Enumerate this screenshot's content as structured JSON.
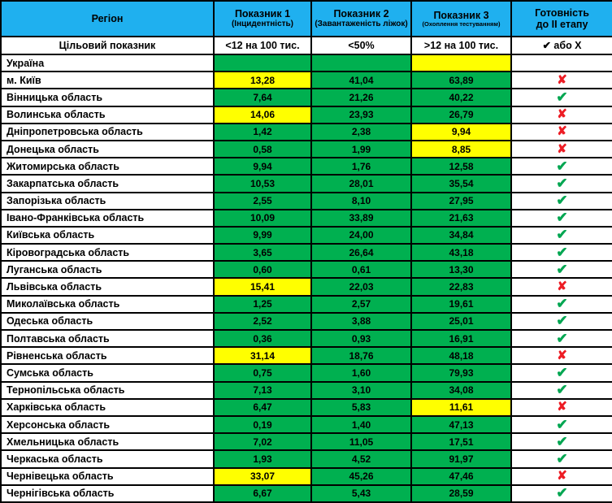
{
  "colors": {
    "header_blue": "#1FB0EF",
    "green": "#00B050",
    "yellow": "#FFFF00",
    "gray": "#C3C3C3",
    "check_green": "#00A651",
    "cross_red": "#ED1C24"
  },
  "symbols": {
    "check": "✔",
    "cross": "✘"
  },
  "table": {
    "header": {
      "region": "Регіон",
      "ind1_title": "Показник 1",
      "ind1_sub": "(Інцидентність)",
      "ind2_title": "Показник 2",
      "ind2_sub": "(Завантаженість ліжок)",
      "ind3_title": "Показник 3",
      "ind3_sub": "(Охоплення тестуванням)",
      "ready_line1": "Готовність",
      "ready_line2": "до II етапу"
    },
    "target": {
      "label": "Цільовий показник",
      "ind1": "<12 на 100 тис.",
      "ind2": "<50%",
      "ind3": ">12 на 100 тис.",
      "ready": "✔ або Χ"
    },
    "rows": [
      {
        "region": "Україна",
        "p1": "",
        "p1_bg": "green",
        "p2": "",
        "p2_bg": "green",
        "p3": "",
        "p3_bg": "yellow",
        "ready": "gray"
      },
      {
        "region": "м. Київ",
        "p1": "13,28",
        "p1_bg": "yellow",
        "p2": "41,04",
        "p2_bg": "green",
        "p3": "63,89",
        "p3_bg": "green",
        "ready": "cross"
      },
      {
        "region": "Вінницька область",
        "p1": "7,64",
        "p1_bg": "green",
        "p2": "21,26",
        "p2_bg": "green",
        "p3": "40,22",
        "p3_bg": "green",
        "ready": "check"
      },
      {
        "region": "Волинська область",
        "p1": "14,06",
        "p1_bg": "yellow",
        "p2": "23,93",
        "p2_bg": "green",
        "p3": "26,79",
        "p3_bg": "green",
        "ready": "cross"
      },
      {
        "region": "Дніпропетровська область",
        "p1": "1,42",
        "p1_bg": "green",
        "p2": "2,38",
        "p2_bg": "green",
        "p3": "9,94",
        "p3_bg": "yellow",
        "ready": "cross"
      },
      {
        "region": "Донецька область",
        "p1": "0,58",
        "p1_bg": "green",
        "p2": "1,99",
        "p2_bg": "green",
        "p3": "8,85",
        "p3_bg": "yellow",
        "ready": "cross"
      },
      {
        "region": "Житомирська область",
        "p1": "9,94",
        "p1_bg": "green",
        "p2": "1,76",
        "p2_bg": "green",
        "p3": "12,58",
        "p3_bg": "green",
        "ready": "check"
      },
      {
        "region": "Закарпатська область",
        "p1": "10,53",
        "p1_bg": "green",
        "p2": "28,01",
        "p2_bg": "green",
        "p3": "35,54",
        "p3_bg": "green",
        "ready": "check"
      },
      {
        "region": "Запорізька область",
        "p1": "2,55",
        "p1_bg": "green",
        "p2": "8,10",
        "p2_bg": "green",
        "p3": "27,95",
        "p3_bg": "green",
        "ready": "check"
      },
      {
        "region": "Івано-Франківська область",
        "p1": "10,09",
        "p1_bg": "green",
        "p2": "33,89",
        "p2_bg": "green",
        "p3": "21,63",
        "p3_bg": "green",
        "ready": "check"
      },
      {
        "region": "Київська область",
        "p1": "9,99",
        "p1_bg": "green",
        "p2": "24,00",
        "p2_bg": "green",
        "p3": "34,84",
        "p3_bg": "green",
        "ready": "check"
      },
      {
        "region": "Кіровоградська область",
        "p1": "3,65",
        "p1_bg": "green",
        "p2": "26,64",
        "p2_bg": "green",
        "p3": "43,18",
        "p3_bg": "green",
        "ready": "check"
      },
      {
        "region": "Луганська область",
        "p1": "0,60",
        "p1_bg": "green",
        "p2": "0,61",
        "p2_bg": "green",
        "p3": "13,30",
        "p3_bg": "green",
        "ready": "check"
      },
      {
        "region": "Львівська область",
        "p1": "15,41",
        "p1_bg": "yellow",
        "p2": "22,03",
        "p2_bg": "green",
        "p3": "22,83",
        "p3_bg": "green",
        "ready": "cross"
      },
      {
        "region": "Миколаївська область",
        "p1": "1,25",
        "p1_bg": "green",
        "p2": "2,57",
        "p2_bg": "green",
        "p3": "19,61",
        "p3_bg": "green",
        "ready": "check"
      },
      {
        "region": "Одеська область",
        "p1": "2,52",
        "p1_bg": "green",
        "p2": "3,88",
        "p2_bg": "green",
        "p3": "25,01",
        "p3_bg": "green",
        "ready": "check"
      },
      {
        "region": "Полтавська область",
        "p1": "0,36",
        "p1_bg": "green",
        "p2": "0,93",
        "p2_bg": "green",
        "p3": "16,91",
        "p3_bg": "green",
        "ready": "check"
      },
      {
        "region": "Рівненська область",
        "p1": "31,14",
        "p1_bg": "yellow",
        "p2": "18,76",
        "p2_bg": "green",
        "p3": "48,18",
        "p3_bg": "green",
        "ready": "cross"
      },
      {
        "region": "Сумська область",
        "p1": "0,75",
        "p1_bg": "green",
        "p2": "1,60",
        "p2_bg": "green",
        "p3": "79,93",
        "p3_bg": "green",
        "ready": "check"
      },
      {
        "region": "Тернопільська область",
        "p1": "7,13",
        "p1_bg": "green",
        "p2": "3,10",
        "p2_bg": "green",
        "p3": "34,08",
        "p3_bg": "green",
        "ready": "check"
      },
      {
        "region": "Харківська область",
        "p1": "6,47",
        "p1_bg": "green",
        "p2": "5,83",
        "p2_bg": "green",
        "p3": "11,61",
        "p3_bg": "yellow",
        "ready": "cross"
      },
      {
        "region": "Херсонська область",
        "p1": "0,19",
        "p1_bg": "green",
        "p2": "1,40",
        "p2_bg": "green",
        "p3": "47,13",
        "p3_bg": "green",
        "ready": "check"
      },
      {
        "region": "Хмельницька область",
        "p1": "7,02",
        "p1_bg": "green",
        "p2": "11,05",
        "p2_bg": "green",
        "p3": "17,51",
        "p3_bg": "green",
        "ready": "check"
      },
      {
        "region": "Черкаська область",
        "p1": "1,93",
        "p1_bg": "green",
        "p2": "4,52",
        "p2_bg": "green",
        "p3": "91,97",
        "p3_bg": "green",
        "ready": "check"
      },
      {
        "region": "Чернівецька область",
        "p1": "33,07",
        "p1_bg": "yellow",
        "p2": "45,26",
        "p2_bg": "green",
        "p3": "47,46",
        "p3_bg": "green",
        "ready": "cross"
      },
      {
        "region": "Чернігівська область",
        "p1": "6,67",
        "p1_bg": "green",
        "p2": "5,43",
        "p2_bg": "green",
        "p3": "28,59",
        "p3_bg": "green",
        "ready": "check"
      }
    ]
  },
  "chart_data": {
    "type": "table",
    "title": "Готовність регіонів до II етапу",
    "columns": [
      "Регіон",
      "Показник 1 (Інцидентність)",
      "Показник 2 (Завантаженість ліжок)",
      "Показник 3 (Охоплення тестуванням)",
      "Готовність до II етапу"
    ],
    "targets": [
      "Цільовий показник",
      "<12 на 100 тис.",
      "<50%",
      ">12 на 100 тис.",
      "✔ або Χ"
    ],
    "rows": [
      [
        "Україна",
        null,
        null,
        null,
        null
      ],
      [
        "м. Київ",
        13.28,
        41.04,
        63.89,
        "✘"
      ],
      [
        "Вінницька область",
        7.64,
        21.26,
        40.22,
        "✔"
      ],
      [
        "Волинська область",
        14.06,
        23.93,
        26.79,
        "✘"
      ],
      [
        "Дніпропетровська область",
        1.42,
        2.38,
        9.94,
        "✘"
      ],
      [
        "Донецька область",
        0.58,
        1.99,
        8.85,
        "✘"
      ],
      [
        "Житомирська область",
        9.94,
        1.76,
        12.58,
        "✔"
      ],
      [
        "Закарпатська область",
        10.53,
        28.01,
        35.54,
        "✔"
      ],
      [
        "Запорізька область",
        2.55,
        8.1,
        27.95,
        "✔"
      ],
      [
        "Івано-Франківська область",
        10.09,
        33.89,
        21.63,
        "✔"
      ],
      [
        "Київська область",
        9.99,
        24.0,
        34.84,
        "✔"
      ],
      [
        "Кіровоградська область",
        3.65,
        26.64,
        43.18,
        "✔"
      ],
      [
        "Луганська область",
        0.6,
        0.61,
        13.3,
        "✔"
      ],
      [
        "Львівська область",
        15.41,
        22.03,
        22.83,
        "✘"
      ],
      [
        "Миколаївська область",
        1.25,
        2.57,
        19.61,
        "✔"
      ],
      [
        "Одеська область",
        2.52,
        3.88,
        25.01,
        "✔"
      ],
      [
        "Полтавська область",
        0.36,
        0.93,
        16.91,
        "✔"
      ],
      [
        "Рівненська область",
        31.14,
        18.76,
        48.18,
        "✘"
      ],
      [
        "Сумська область",
        0.75,
        1.6,
        79.93,
        "✔"
      ],
      [
        "Тернопільська область",
        7.13,
        3.1,
        34.08,
        "✔"
      ],
      [
        "Харківська область",
        6.47,
        5.83,
        11.61,
        "✘"
      ],
      [
        "Херсонська область",
        0.19,
        1.4,
        47.13,
        "✔"
      ],
      [
        "Хмельницька область",
        7.02,
        11.05,
        17.51,
        "✔"
      ],
      [
        "Черкаська область",
        1.93,
        4.52,
        91.97,
        "✔"
      ],
      [
        "Чернівецька область",
        33.07,
        45.26,
        47.46,
        "✘"
      ],
      [
        "Чернігівська область",
        6.67,
        5.43,
        28.59,
        "✔"
      ]
    ]
  }
}
